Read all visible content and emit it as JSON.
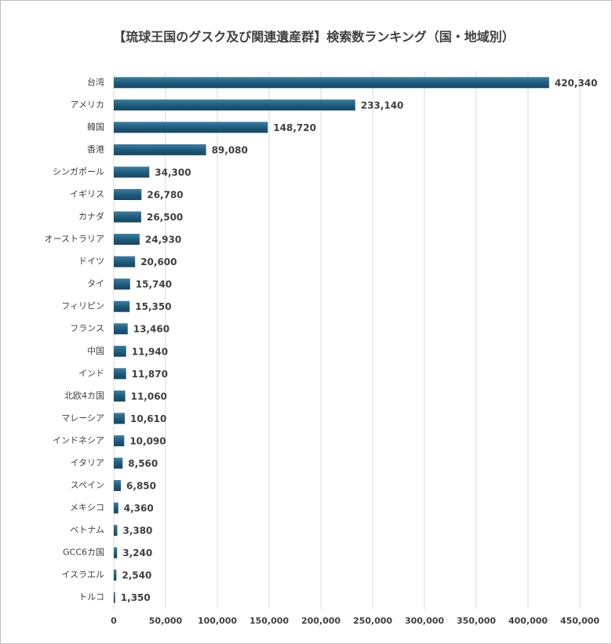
{
  "chart_data": {
    "type": "hbar",
    "title": "【琉球王国のグスク及び関連遺産群】検索数ランキング（国・地域別）",
    "categories": [
      "台湾",
      "アメリカ",
      "韓国",
      "香港",
      "シンガポール",
      "イギリス",
      "カナダ",
      "オーストラリア",
      "ドイツ",
      "タイ",
      "フィリピン",
      "フランス",
      "中国",
      "インド",
      "北欧4カ国",
      "マレーシア",
      "インドネシア",
      "イタリア",
      "スペイン",
      "メキシコ",
      "ベトナム",
      "GCC6カ国",
      "イスラエル",
      "トルコ"
    ],
    "values": [
      420340,
      233140,
      148720,
      89080,
      34300,
      26780,
      26500,
      24930,
      20600,
      15740,
      15350,
      13460,
      11940,
      11870,
      11060,
      10610,
      10090,
      8560,
      6850,
      4360,
      3380,
      3240,
      2540,
      1350
    ],
    "value_labels": [
      "420,340",
      "233,140",
      "148,720",
      "89,080",
      "34,300",
      "26,780",
      "26,500",
      "24,930",
      "20,600",
      "15,740",
      "15,350",
      "13,460",
      "11,940",
      "11,870",
      "11,060",
      "10,610",
      "10,090",
      "8,560",
      "6,850",
      "4,360",
      "3,380",
      "3,240",
      "2,540",
      "1,350"
    ],
    "color": "#1f5c7e",
    "xlim": [
      0,
      450000
    ],
    "xticks": [
      0,
      {
        "value": 50000,
        "label": "50,000"
      },
      {
        "value": 100000,
        "label": "100,000"
      },
      {
        "value": 150000,
        "label": "150,000"
      },
      {
        "value": 200000,
        "label": "200,000"
      },
      {
        "value": 250000,
        "label": "250,000"
      },
      {
        "value": 300000,
        "label": "300,000"
      },
      {
        "value": 350000,
        "label": "350,000"
      },
      {
        "value": 400000,
        "label": "400,000"
      },
      {
        "value": 450000,
        "label": "450,000"
      }
    ],
    "grid": true
  }
}
